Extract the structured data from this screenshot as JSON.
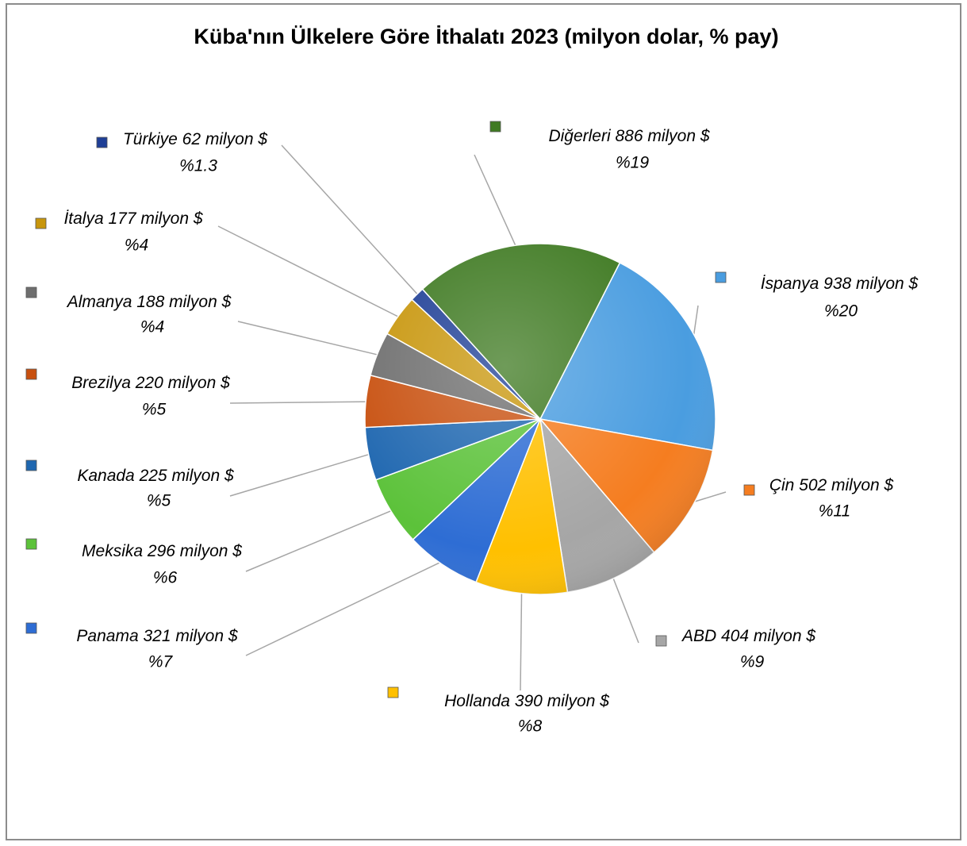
{
  "chart_data": {
    "type": "pie",
    "title": "Küba'nın Ülkelere Göre İthalatı 2023 (milyon dolar, % pay)",
    "categories": [
      "İspanya",
      "Çin",
      "ABD",
      "Hollanda",
      "Panama",
      "Meksika",
      "Kanada",
      "Brezilya",
      "Almanya",
      "İtalya",
      "Türkiye",
      "Diğerleri"
    ],
    "values": [
      938,
      502,
      404,
      390,
      321,
      296,
      225,
      220,
      188,
      177,
      62,
      886
    ],
    "value_labels": [
      "938 milyon $",
      "502 milyon $",
      "404 milyon $",
      "390 milyon $",
      "321 milyon $",
      "296 milyon $",
      "225 milyon $",
      "220 milyon $",
      "188 milyon $",
      "177 milyon $",
      "62 milyon $",
      "886 milyon $"
    ],
    "percentages": [
      20,
      11,
      9,
      8,
      7,
      6,
      5,
      5,
      4,
      4,
      1.3,
      19
    ],
    "percentage_labels": [
      "%20",
      "%11",
      "%9",
      "%8",
      "%7",
      "%6",
      "%5",
      "%5",
      "%4",
      "%4",
      "%1.3",
      "%19"
    ],
    "colors": [
      "#4a9de0",
      "#f57d20",
      "#a6a6a6",
      "#ffc000",
      "#2e6dd4",
      "#5cc23a",
      "#1f67b0",
      "#c8500f",
      "#6e6e6e",
      "#c8960c",
      "#1f3f96",
      "#3f7a22"
    ]
  }
}
